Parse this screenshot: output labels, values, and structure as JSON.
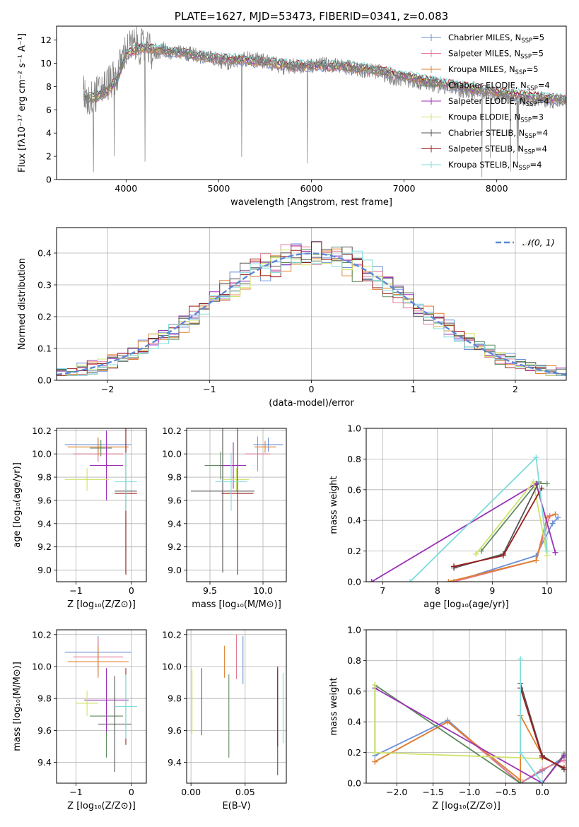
{
  "colors": [
    "#6b8fd6",
    "#e07b91",
    "#e0802e",
    "#5e8a5e",
    "#9b30b8",
    "#cfe36a",
    "#555555",
    "#9b1c1c",
    "#7fdcdc"
  ],
  "chart_data": [
    {
      "id": "spectrum",
      "type": "line",
      "title": "PLATE=1627, MJD=53473, FIBERID=0341, z=0.083",
      "xlabel": "wavelength [Angstrom, rest frame]",
      "ylabel": "Flux [fλ10⁻¹⁷ erg cm⁻² s⁻¹ A⁻¹]",
      "xlim": [
        3250,
        8750
      ],
      "ylim": [
        0,
        13.2
      ],
      "xticks": [
        4000,
        5000,
        6000,
        7000,
        8000
      ],
      "yticks": [
        0,
        2,
        4,
        6,
        8,
        10,
        12
      ],
      "legend_loc": "upper right",
      "data_x": [
        3540,
        3600,
        3700,
        3800,
        3900,
        3950,
        4000,
        4100,
        4200,
        4300,
        4400,
        4500,
        4700,
        4900,
        5100,
        5300,
        5500,
        5700,
        5900,
        6100,
        6300,
        6500,
        6700,
        6900,
        7100,
        7300,
        7500,
        7700,
        7900,
        8100,
        8300,
        8500,
        8750
      ],
      "data_y": [
        7.5,
        6.8,
        7.5,
        8.3,
        8.8,
        10.2,
        11.2,
        11.6,
        11.3,
        10.8,
        11.2,
        10.9,
        10.8,
        10.5,
        10.1,
        10.4,
        10.2,
        9.7,
        9.8,
        9.9,
        9.8,
        9.5,
        9.3,
        8.7,
        8.5,
        8.2,
        7.9,
        7.6,
        7.4,
        7.2,
        7.0,
        6.9,
        6.7
      ],
      "model_x": [
        3540,
        3650,
        3800,
        3900,
        3950,
        4000,
        4200,
        4400,
        4600,
        4800,
        5000,
        5200,
        5500,
        5800,
        6100,
        6400,
        6700,
        7000,
        7300,
        7600,
        7900,
        8200,
        8500,
        8750
      ],
      "model_y": [
        7.2,
        7.0,
        7.6,
        8.6,
        9.6,
        10.8,
        11.4,
        11.1,
        10.9,
        10.6,
        10.4,
        10.3,
        10.1,
        9.8,
        9.8,
        9.7,
        9.4,
        8.9,
        8.4,
        8.0,
        7.6,
        7.3,
        7.0,
        6.8
      ],
      "series": [
        {
          "name": "Chabrier MILES, N_SSP=5",
          "label_pre": "Chabrier MILES, N",
          "label_sub": "SSP",
          "label_post": "=5"
        },
        {
          "name": "Salpeter MILES, N_SSP=5",
          "label_pre": "Salpeter MILES, N",
          "label_sub": "SSP",
          "label_post": "=5"
        },
        {
          "name": "Kroupa MILES, N_SSP=5",
          "label_pre": "Kroupa MILES, N",
          "label_sub": "SSP",
          "label_post": "=5"
        },
        {
          "name": "Chabrier ELODIE, N_SSP=4",
          "label_pre": "Chabrier ELODIE, N",
          "label_sub": "SSP",
          "label_post": "=4"
        },
        {
          "name": "Salpeter ELODIE, N_SSP=4",
          "label_pre": "Salpeter ELODIE, N",
          "label_sub": "SSP",
          "label_post": "=4"
        },
        {
          "name": "Kroupa ELODIE, N_SSP=3",
          "label_pre": "Kroupa ELODIE, N",
          "label_sub": "SSP",
          "label_post": "=3"
        },
        {
          "name": "Chabrier STELIB, N_SSP=4",
          "label_pre": "Chabrier STELIB, N",
          "label_sub": "SSP",
          "label_post": "=4"
        },
        {
          "name": "Salpeter STELIB, N_SSP=4",
          "label_pre": "Salpeter STELIB, N",
          "label_sub": "SSP",
          "label_post": "=4"
        },
        {
          "name": "Kroupa STELIB, N_SSP=4",
          "label_pre": "Kroupa STELIB, N",
          "label_sub": "SSP",
          "label_post": "=4"
        }
      ]
    },
    {
      "id": "residuals",
      "type": "line",
      "xlabel": "(data-model)/error",
      "ylabel": "Normed distribution",
      "xlim": [
        -2.5,
        2.5
      ],
      "ylim": [
        0,
        0.48
      ],
      "xticks": [
        -2,
        -1,
        0,
        1,
        2
      ],
      "yticks": [
        0.0,
        0.1,
        0.2,
        0.3,
        0.4
      ],
      "legend": "𝒩(0, 1)",
      "bin_width": 0.1
    },
    {
      "id": "age-vs-z",
      "type": "scatter",
      "xlabel": "Z [log₁₀(Z/Z⊙)]",
      "ylabel": "age  [log₁₀(age/yr)]",
      "xlim": [
        -1.35,
        0.27
      ],
      "ylim": [
        8.9,
        10.22
      ],
      "xticks": [
        -1,
        0
      ],
      "yticks": [
        9.0,
        9.2,
        9.4,
        9.6,
        9.8,
        10.0,
        10.2
      ],
      "points": [
        {
          "x": -0.6,
          "xerr": 0.6,
          "y": 10.08,
          "yerr": 0.06
        },
        {
          "x": -0.6,
          "xerr": 0.45,
          "y": 10.0,
          "yerr": 0.07
        },
        {
          "x": -0.6,
          "xerr": 0.55,
          "y": 10.06,
          "yerr": 0.08
        },
        {
          "x": -0.55,
          "xerr": 0.2,
          "y": 10.05,
          "yerr": 0.07
        },
        {
          "x": -0.45,
          "xerr": 0.3,
          "y": 9.9,
          "yerr": 0.3
        },
        {
          "x": -0.8,
          "xerr": 0.4,
          "y": 9.78,
          "yerr": 0.1
        },
        {
          "x": -0.1,
          "xerr": 0.2,
          "y": 9.68,
          "yerr": 0.7
        },
        {
          "x": -0.1,
          "xerr": 0.2,
          "y": 9.66,
          "yerr": 0.7
        },
        {
          "x": -0.1,
          "xerr": 0.2,
          "y": 9.76,
          "yerr": 0.25
        }
      ]
    },
    {
      "id": "age-vs-mass",
      "type": "scatter",
      "xlabel": "mass [log₁₀(M/M⊙)]",
      "ylabel": "",
      "xlim": [
        9.28,
        10.22
      ],
      "ylim": [
        8.9,
        10.22
      ],
      "xticks": [
        9.5,
        10.0
      ],
      "yticks": [
        9.0,
        9.2,
        9.4,
        9.6,
        9.8,
        10.0,
        10.2
      ],
      "points": [
        {
          "x": 10.05,
          "xerr": 0.14,
          "y": 10.08,
          "yerr": 0.06
        },
        {
          "x": 9.95,
          "xerr": 0.12,
          "y": 10.0,
          "yerr": 0.15
        },
        {
          "x": 10.02,
          "xerr": 0.1,
          "y": 10.06,
          "yerr": 0.05
        },
        {
          "x": 9.6,
          "xerr": 0.15,
          "y": 9.9,
          "yerr": 0.12
        },
        {
          "x": 9.72,
          "xerr": 0.12,
          "y": 9.9,
          "yerr": 0.2
        },
        {
          "x": 9.75,
          "xerr": 0.12,
          "y": 9.78,
          "yerr": 0.1
        },
        {
          "x": 9.62,
          "xerr": 0.3,
          "y": 9.68,
          "yerr": 0.7
        },
        {
          "x": 9.76,
          "xerr": 0.15,
          "y": 9.66,
          "yerr": 0.7
        },
        {
          "x": 9.7,
          "xerr": 0.15,
          "y": 9.76,
          "yerr": 0.25
        }
      ]
    },
    {
      "id": "weight-vs-age",
      "type": "line",
      "xlabel": "age  [log₁₀(age/yr)]",
      "ylabel": "mass weight",
      "xlim": [
        6.7,
        10.35
      ],
      "ylim": [
        0,
        1.0
      ],
      "xticks": [
        7,
        8,
        9,
        10
      ],
      "yticks": [
        0.0,
        0.2,
        0.4,
        0.6,
        0.8,
        1.0
      ],
      "series": [
        {
          "x": [
            8.3,
            9.8,
            10.1,
            10.2
          ],
          "y": [
            0.0,
            0.17,
            0.38,
            0.42
          ]
        },
        {
          "x": [
            8.3,
            9.8,
            10.05,
            10.15
          ],
          "y": [
            0.0,
            0.14,
            0.43,
            0.44
          ]
        },
        {
          "x": [
            8.2,
            9.8,
            10.0,
            10.15
          ],
          "y": [
            0.0,
            0.14,
            0.42,
            0.44
          ]
        },
        {
          "x": [
            8.8,
            9.8,
            10.0
          ],
          "y": [
            0.2,
            0.64,
            0.64
          ]
        },
        {
          "x": [
            6.8,
            9.8,
            10.15
          ],
          "y": [
            0.0,
            0.64,
            0.19
          ]
        },
        {
          "x": [
            8.7,
            9.75,
            10.0
          ],
          "y": [
            0.18,
            0.65,
            0.17
          ]
        },
        {
          "x": [
            8.3,
            9.2,
            9.85
          ],
          "y": [
            0.09,
            0.18,
            0.65
          ]
        },
        {
          "x": [
            8.3,
            9.2,
            9.9
          ],
          "y": [
            0.1,
            0.17,
            0.61
          ]
        },
        {
          "x": [
            7.5,
            9.8,
            10.0
          ],
          "y": [
            0.0,
            0.81,
            0.2
          ]
        }
      ]
    },
    {
      "id": "mass-vs-z",
      "type": "scatter",
      "xlabel": "Z [log₁₀(Z/Z⊙)]",
      "ylabel": "mass [log₁₀(M/M⊙)]",
      "xlim": [
        -1.35,
        0.27
      ],
      "ylim": [
        9.27,
        10.23
      ],
      "xticks": [
        -1,
        0
      ],
      "yticks": [
        9.4,
        9.6,
        9.8,
        10.0,
        10.2
      ],
      "points": [
        {
          "x": -0.6,
          "xerr": 0.6,
          "y": 10.09,
          "yerr": 0.1
        },
        {
          "x": -0.6,
          "xerr": 0.45,
          "y": 10.06,
          "yerr": 0.12
        },
        {
          "x": -0.6,
          "xerr": 0.55,
          "y": 10.03,
          "yerr": 0.1
        },
        {
          "x": -0.45,
          "xerr": 0.3,
          "y": 9.69,
          "yerr": 0.26
        },
        {
          "x": -0.45,
          "xerr": 0.4,
          "y": 9.79,
          "yerr": 0.2
        },
        {
          "x": -0.8,
          "xerr": 0.2,
          "y": 9.77,
          "yerr": 0.08
        },
        {
          "x": -0.3,
          "xerr": 0.3,
          "y": 9.64,
          "yerr": 0.3
        },
        {
          "x": -0.1,
          "xerr": 0.2,
          "y": 9.75,
          "yerr": 0.24
        },
        {
          "x": -0.1,
          "xerr": 0.2,
          "y": 9.75,
          "yerr": 0.2
        }
      ]
    },
    {
      "id": "mass-vs-ebv",
      "type": "scatter",
      "xlabel": "E(B-V)",
      "ylabel": "",
      "xlim": [
        -0.004,
        0.088
      ],
      "ylim": [
        9.27,
        10.23
      ],
      "xticks": [
        0.0,
        0.05
      ],
      "yticks": [
        9.4,
        9.6,
        9.8,
        10.0,
        10.2
      ],
      "points": [
        {
          "x": 0.048,
          "y": 10.04,
          "yerr": 0.15
        },
        {
          "x": 0.042,
          "y": 10.06,
          "yerr": 0.14
        },
        {
          "x": 0.031,
          "y": 10.03,
          "yerr": 0.1
        },
        {
          "x": 0.035,
          "y": 9.69,
          "yerr": 0.26
        },
        {
          "x": 0.01,
          "y": 9.78,
          "yerr": 0.21
        },
        {
          "x": 0.001,
          "y": 9.78,
          "yerr": 0.2
        },
        {
          "x": 0.08,
          "y": 9.65,
          "yerr": 0.33
        },
        {
          "x": 0.08,
          "y": 9.75,
          "yerr": 0.25
        },
        {
          "x": 0.085,
          "y": 9.74,
          "yerr": 0.22
        }
      ]
    },
    {
      "id": "weight-vs-z",
      "type": "line",
      "xlabel": "Z [log₁₀(Z/Z⊙)]",
      "ylabel": "mass weight",
      "xlim": [
        -2.42,
        0.33
      ],
      "ylim": [
        0,
        1.0
      ],
      "xticks": [
        -2.0,
        -1.5,
        -1.0,
        -0.5,
        0.0
      ],
      "yticks": [
        0.0,
        0.2,
        0.4,
        0.6,
        0.8,
        1.0
      ],
      "series": [
        {
          "x": [
            -2.3,
            -1.3,
            -0.3,
            0.0,
            0.3
          ],
          "y": [
            0.18,
            0.41,
            0.0,
            0.08,
            0.17
          ]
        },
        {
          "x": [
            -2.3,
            -1.3,
            -0.3,
            0.0,
            0.3
          ],
          "y": [
            0.14,
            0.4,
            0.0,
            0.09,
            0.15
          ]
        },
        {
          "x": [
            -2.3,
            -1.3,
            -0.3,
            -0.3,
            0.0
          ],
          "y": [
            0.14,
            0.4,
            0.02,
            0.44,
            0.18
          ]
        },
        {
          "x": [
            -2.3,
            -2.3,
            -0.3,
            0.0,
            0.3
          ],
          "y": [
            0.2,
            0.64,
            0.0,
            0.0,
            0.19
          ]
        },
        {
          "x": [
            -2.3,
            0.0,
            0.3
          ],
          "y": [
            0.62,
            0.0,
            0.18
          ]
        },
        {
          "x": [
            -2.3,
            -2.3,
            0.0
          ],
          "y": [
            0.64,
            0.2,
            0.16
          ]
        },
        {
          "x": [
            -0.3,
            0.0,
            0.3
          ],
          "y": [
            0.65,
            0.18,
            0.09
          ]
        },
        {
          "x": [
            -0.3,
            0.0,
            0.3
          ],
          "y": [
            0.62,
            0.17,
            0.1
          ]
        },
        {
          "x": [
            -0.3,
            -0.3,
            0.0
          ],
          "y": [
            0.81,
            0.2,
            0.0
          ]
        }
      ]
    }
  ]
}
